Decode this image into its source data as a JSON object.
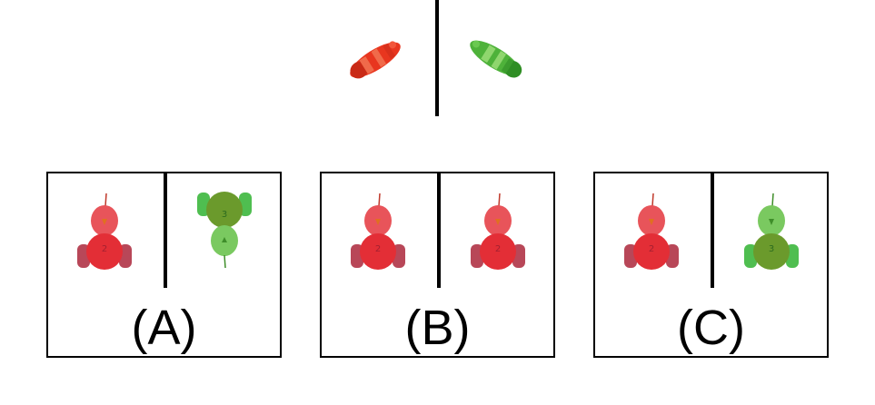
{
  "options": [
    {
      "label": "(A)"
    },
    {
      "label": "(B)"
    },
    {
      "label": "(C)"
    }
  ],
  "colors": {
    "red_toy": "#e23a2a",
    "green_toy": "#49b83a"
  },
  "icons": {
    "reference_left": "red-toy-car-side-icon",
    "reference_right": "green-toy-car-side-icon",
    "toy_red": "red-toy-car-front-icon",
    "toy_green_up": "green-toy-car-upside-down-icon",
    "toy_green": "green-toy-car-front-icon"
  }
}
